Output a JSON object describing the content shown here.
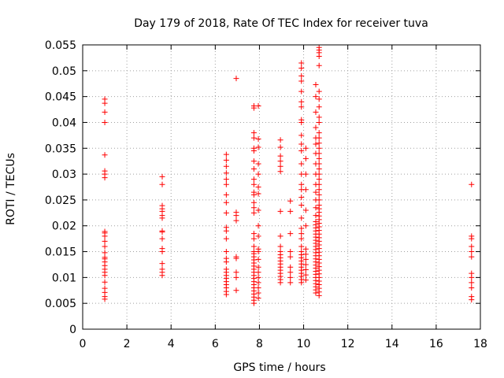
{
  "chart_data": {
    "type": "scatter",
    "title": "Day 179 of 2018, Rate Of TEC Index for receiver tuva",
    "xlabel": "GPS time / hours",
    "ylabel": "ROTI / TECUs",
    "xlim": [
      0,
      18
    ],
    "ylim": [
      0,
      0.055
    ],
    "xticks": [
      0,
      2,
      4,
      6,
      8,
      10,
      12,
      14,
      16,
      18
    ],
    "yticks": [
      0,
      0.005,
      0.01,
      0.015,
      0.02,
      0.025,
      0.03,
      0.035,
      0.04,
      0.045,
      0.05,
      0.055
    ],
    "xtick_labels": [
      "0",
      "2",
      "4",
      "6",
      "8",
      "10",
      "12",
      "14",
      "16",
      "18"
    ],
    "ytick_labels": [
      "0",
      "0.005",
      "0.01",
      "0.015",
      "0.02",
      "0.025",
      "0.03",
      "0.035",
      "0.04",
      "0.045",
      "0.05",
      "0.055"
    ],
    "grid": true,
    "marker": "+",
    "color": "#ff0000",
    "clusters": [
      {
        "x": 1.0,
        "y": [
          0.0058,
          0.0063,
          0.0071,
          0.0079,
          0.0091,
          0.0104,
          0.011,
          0.0116,
          0.0123,
          0.013,
          0.0136,
          0.0139,
          0.0148,
          0.016,
          0.017,
          0.018,
          0.0186,
          0.0189,
          0.0293,
          0.03,
          0.0306,
          0.0337,
          0.04,
          0.042,
          0.0437,
          0.0445
        ]
      },
      {
        "x": 3.6,
        "y": [
          0.0104,
          0.011,
          0.0116,
          0.0127,
          0.015,
          0.0156,
          0.0175,
          0.0188,
          0.019,
          0.0215,
          0.022,
          0.0228,
          0.0233,
          0.0239,
          0.028,
          0.0295
        ]
      },
      {
        "x": 6.5,
        "y": [
          0.0067,
          0.0073,
          0.008,
          0.0086,
          0.0092,
          0.0098,
          0.0104,
          0.011,
          0.0116,
          0.013,
          0.0137,
          0.015,
          0.0175,
          0.019,
          0.0197,
          0.0225,
          0.0245,
          0.026,
          0.028,
          0.029,
          0.0302,
          0.0315,
          0.0327,
          0.0338
        ]
      },
      {
        "x": 6.95,
        "y": [
          0.0075,
          0.01,
          0.011,
          0.0137,
          0.014,
          0.021,
          0.022,
          0.0226,
          0.0485
        ]
      },
      {
        "x": 7.75,
        "y": [
          0.005,
          0.0056,
          0.0062,
          0.0068,
          0.0074,
          0.008,
          0.0086,
          0.0092,
          0.0098,
          0.0104,
          0.011,
          0.0116,
          0.0122,
          0.0128,
          0.0134,
          0.014,
          0.0146,
          0.015,
          0.016,
          0.0175,
          0.0185,
          0.0225,
          0.0235,
          0.0245,
          0.026,
          0.0265,
          0.028,
          0.029,
          0.031,
          0.0325,
          0.0345,
          0.035,
          0.037,
          0.038,
          0.0428,
          0.0432
        ]
      },
      {
        "x": 7.95,
        "y": [
          0.006,
          0.007,
          0.008,
          0.009,
          0.01,
          0.011,
          0.012,
          0.0135,
          0.015,
          0.0155,
          0.018,
          0.02,
          0.023,
          0.0262,
          0.0275,
          0.03,
          0.032,
          0.0352,
          0.0368,
          0.0432
        ]
      },
      {
        "x": 8.95,
        "y": [
          0.009,
          0.0096,
          0.0102,
          0.0108,
          0.0114,
          0.012,
          0.0126,
          0.0132,
          0.0138,
          0.0144,
          0.015,
          0.016,
          0.018,
          0.0228,
          0.0305,
          0.0315,
          0.0325,
          0.0335,
          0.0352,
          0.0366
        ]
      },
      {
        "x": 9.4,
        "y": [
          0.009,
          0.01,
          0.011,
          0.012,
          0.014,
          0.015,
          0.0185,
          0.0228,
          0.0248
        ]
      },
      {
        "x": 9.9,
        "y": [
          0.009,
          0.0096,
          0.0102,
          0.0108,
          0.0114,
          0.012,
          0.0126,
          0.0132,
          0.0138,
          0.0144,
          0.015,
          0.016,
          0.0175,
          0.0185,
          0.0195,
          0.0215,
          0.024,
          0.0255,
          0.027,
          0.028,
          0.03,
          0.032,
          0.0345,
          0.0358,
          0.0375,
          0.04,
          0.0405,
          0.043,
          0.044,
          0.046,
          0.048,
          0.049,
          0.0505,
          0.0515
        ]
      },
      {
        "x": 10.1,
        "y": [
          0.0095,
          0.0105,
          0.0115,
          0.0125,
          0.0135,
          0.0145,
          0.0155,
          0.02,
          0.023,
          0.027,
          0.03,
          0.033,
          0.035
        ]
      },
      {
        "x": 10.55,
        "y": [
          0.007,
          0.0076,
          0.0082,
          0.0088,
          0.0094,
          0.01,
          0.0106,
          0.0112,
          0.0118,
          0.0124,
          0.013,
          0.0136,
          0.0142,
          0.0148,
          0.0154,
          0.016,
          0.0166,
          0.0172,
          0.0178,
          0.0184,
          0.019,
          0.0196,
          0.0202,
          0.0208,
          0.022,
          0.0235,
          0.025,
          0.0265,
          0.028,
          0.03,
          0.032,
          0.034,
          0.0358,
          0.037,
          0.039,
          0.042,
          0.045,
          0.0473
        ]
      },
      {
        "x": 10.7,
        "y": [
          0.0065,
          0.0072,
          0.0079,
          0.0086,
          0.0093,
          0.01,
          0.0107,
          0.0114,
          0.0121,
          0.0128,
          0.0135,
          0.0142,
          0.0149,
          0.0156,
          0.0163,
          0.017,
          0.0177,
          0.0184,
          0.0191,
          0.0198,
          0.0205,
          0.0212,
          0.0219,
          0.0226,
          0.0233,
          0.024,
          0.025,
          0.026,
          0.027,
          0.028,
          0.029,
          0.03,
          0.031,
          0.032,
          0.033,
          0.034,
          0.035,
          0.036,
          0.037,
          0.038,
          0.04,
          0.041,
          0.043,
          0.0445,
          0.046,
          0.051,
          0.0528,
          0.0535,
          0.054,
          0.0545
        ]
      },
      {
        "x": 17.6,
        "y": [
          0.0057,
          0.0063,
          0.008,
          0.009,
          0.01,
          0.0108,
          0.014,
          0.015,
          0.016,
          0.0175,
          0.018,
          0.028
        ]
      }
    ]
  }
}
